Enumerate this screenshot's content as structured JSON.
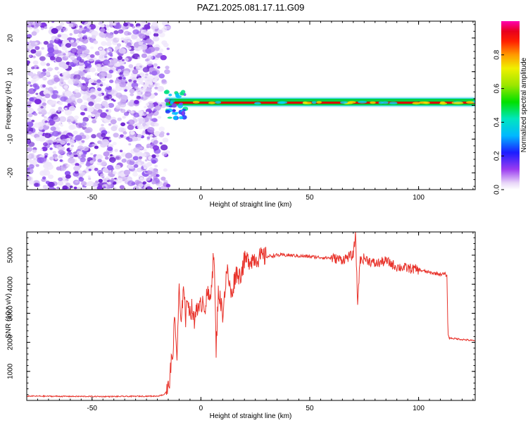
{
  "title": "PAZ1.2025.081.17.11.G09",
  "colors": {
    "snr_line": "#e8322a",
    "spec_cloud": "#7a2be0",
    "spec_band_core": "#e00000",
    "spec_band_mid": "#00d040",
    "spec_band_edge": "#00c8ff"
  },
  "chart_data": [
    {
      "type": "heatmap",
      "xlabel": "Height of straight line (km)",
      "ylabel": "Frequency (Hz)",
      "xlim": [
        -80,
        126
      ],
      "ylim": [
        -25,
        25
      ],
      "xticks": [
        -50,
        0,
        50,
        100
      ],
      "yticks": [
        -20,
        -10,
        0,
        10,
        20
      ],
      "colorbar": {
        "label": "Normalized spectral amplitude",
        "range": [
          0,
          1
        ],
        "ticks": [
          "0.0",
          "0.2",
          "0.4",
          "0.6",
          "0.8"
        ],
        "tick_values": [
          0,
          0.2,
          0.4,
          0.6,
          0.8
        ]
      },
      "regions": [
        {
          "kind": "noise",
          "x": [
            -80,
            -14
          ],
          "freq": [
            -25,
            25
          ]
        },
        {
          "kind": "signal_band",
          "x": [
            -16,
            126
          ],
          "freq": [
            0,
            2
          ],
          "peak_freq": 0.8
        }
      ]
    },
    {
      "type": "line",
      "xlabel": "Height of straight line (km)",
      "ylabel": "SNR (10 * v/v)",
      "xlim": [
        -80,
        126
      ],
      "ylim": [
        0,
        5800
      ],
      "xticks": [
        -50,
        0,
        50,
        100
      ],
      "yticks": [
        1000,
        2000,
        3000,
        4000,
        5000
      ],
      "series": [
        {
          "x": [
            -80,
            -60,
            -40,
            -20,
            -17,
            -15,
            -13,
            -12,
            -11,
            -10,
            -9,
            -8,
            -7,
            -6,
            -5,
            -4,
            -3,
            -2,
            -1,
            0,
            1,
            2,
            3,
            4,
            5,
            6,
            7,
            8,
            10,
            12,
            14,
            16,
            18,
            20,
            25,
            30,
            35,
            40,
            50,
            60,
            65,
            68,
            70,
            71,
            72,
            73,
            75,
            80,
            85,
            90,
            95,
            100,
            105,
            110,
            112,
            113,
            113.5,
            114,
            120,
            126
          ],
          "y": [
            150,
            140,
            135,
            150,
            200,
            400,
            1600,
            2800,
            1500,
            3800,
            2400,
            4200,
            2800,
            3600,
            3000,
            3200,
            2600,
            3400,
            3000,
            3300,
            3500,
            3200,
            3700,
            3400,
            4200,
            5100,
            1700,
            3800,
            3000,
            4500,
            3600,
            4400,
            4300,
            4800,
            4900,
            4950,
            5000,
            5000,
            4950,
            4900,
            4850,
            4950,
            5000,
            5750,
            3300,
            4800,
            4900,
            4700,
            4800,
            4600,
            4550,
            4500,
            4400,
            4350,
            4350,
            4300,
            2300,
            2150,
            2100,
            2050
          ]
        }
      ]
    }
  ]
}
